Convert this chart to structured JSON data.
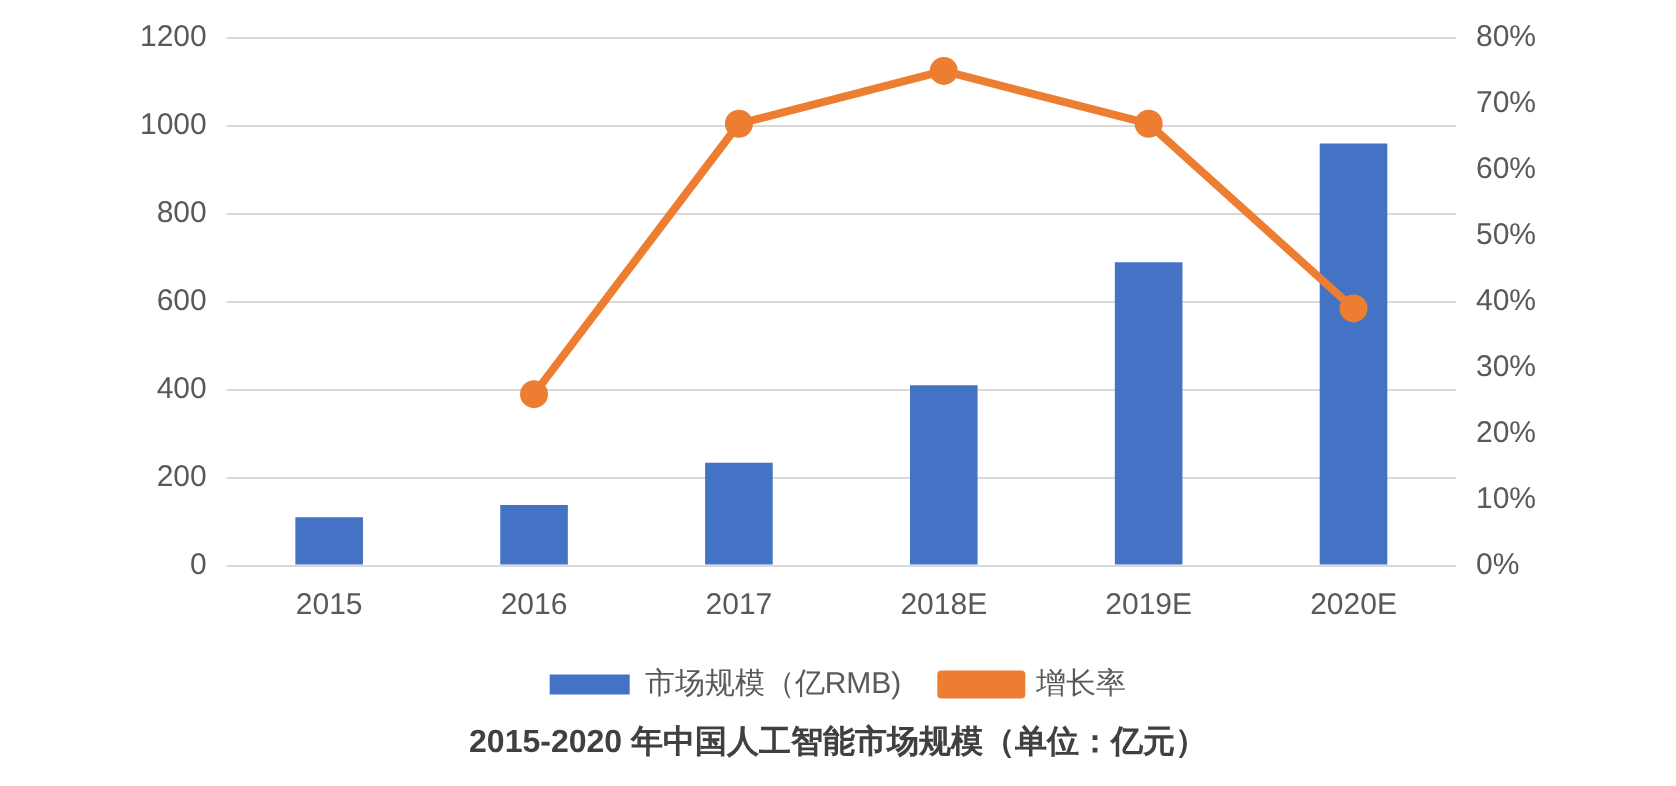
{
  "chart_data": {
    "type": "bar",
    "title": "2015-2020 年中国人工智能市场规模（单位：亿元）",
    "categories": [
      "2015",
      "2016",
      "2017",
      "2018E",
      "2019E",
      "2020E"
    ],
    "series": [
      {
        "name": "市场规模（亿RMB)",
        "color": "#4472c4",
        "values": [
          110,
          138,
          234,
          410,
          690,
          960
        ]
      },
      {
        "name": "增长率",
        "type": "line",
        "axis": "y2",
        "color": "#ed7d31",
        "values": [
          null,
          26,
          67,
          75,
          67,
          39
        ]
      }
    ],
    "ylim": [
      0,
      1200
    ],
    "yticks": [
      0,
      200,
      400,
      600,
      800,
      1000,
      1200
    ],
    "y2lim": [
      0,
      80
    ],
    "y2ticks": [
      {
        "value": 0,
        "label": "0%"
      },
      {
        "value": 10,
        "label": "10%"
      },
      {
        "value": 20,
        "label": "20%"
      },
      {
        "value": 30,
        "label": "30%"
      },
      {
        "value": 40,
        "label": "40%"
      },
      {
        "value": 50,
        "label": "50%"
      },
      {
        "value": 60,
        "label": "60%"
      },
      {
        "value": 70,
        "label": "70%"
      },
      {
        "value": 80,
        "label": "80%"
      }
    ],
    "grid": "y",
    "legend": "bottom",
    "marker": "circle",
    "line_style": "solid"
  }
}
